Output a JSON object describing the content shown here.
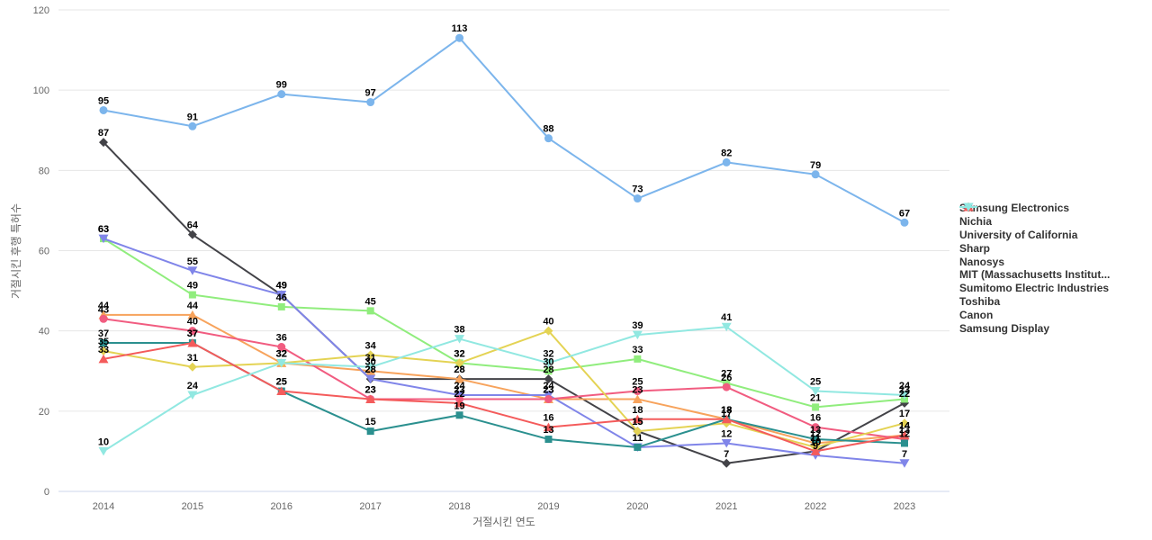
{
  "chart_data": {
    "type": "line",
    "title": "",
    "xlabel": "거절시킨 연도",
    "ylabel": "거절시킨 후행 특허수",
    "categories": [
      "2014",
      "2015",
      "2016",
      "2017",
      "2018",
      "2019",
      "2020",
      "2021",
      "2022",
      "2023"
    ],
    "ylim": [
      0,
      120
    ],
    "yticks": [
      0,
      20,
      40,
      60,
      80,
      100,
      120
    ],
    "grid": "horizontal-only",
    "legend_position": "right-middle",
    "data_labels": "bold black value above every point",
    "series": [
      {
        "name": "Samsung Electronics",
        "color": "#7cb5ec",
        "marker": "circle",
        "values": [
          95,
          91,
          99,
          97,
          113,
          88,
          73,
          82,
          79,
          67
        ]
      },
      {
        "name": "Nichia",
        "color": "#434348",
        "marker": "diamond",
        "values": [
          87,
          64,
          49,
          28,
          28,
          28,
          15,
          7,
          10,
          22
        ]
      },
      {
        "name": "University of California",
        "color": "#90ed7d",
        "marker": "square",
        "values": [
          63,
          49,
          46,
          45,
          32,
          30,
          33,
          27,
          21,
          23
        ]
      },
      {
        "name": "Sharp",
        "color": "#f7a35c",
        "marker": "triangle",
        "values": [
          44,
          44,
          32,
          30,
          28,
          23,
          23,
          18,
          12,
          14
        ]
      },
      {
        "name": "Nanosys",
        "color": "#8085e9",
        "marker": "triangle-down",
        "values": [
          63,
          55,
          49,
          28,
          24,
          24,
          11,
          12,
          9,
          7
        ]
      },
      {
        "name": "MIT (Massachusetts Institut...",
        "color": "#f15c80",
        "marker": "circle",
        "values": [
          43,
          40,
          36,
          23,
          23,
          23,
          25,
          26,
          16,
          13
        ]
      },
      {
        "name": "Sumitomo Electric Industries",
        "color": "#e4d354",
        "marker": "diamond",
        "values": [
          35,
          31,
          32,
          34,
          32,
          40,
          15,
          17,
          11,
          17
        ]
      },
      {
        "name": "Toshiba",
        "color": "#2b908f",
        "marker": "square",
        "values": [
          37,
          37,
          25,
          15,
          19,
          13,
          11,
          18,
          13,
          12
        ]
      },
      {
        "name": "Canon",
        "color": "#f45b5b",
        "marker": "triangle",
        "values": [
          33,
          37,
          25,
          23,
          22,
          16,
          18,
          18,
          10,
          14
        ]
      },
      {
        "name": "Samsung Display",
        "color": "#91e8e1",
        "marker": "triangle-down",
        "values": [
          10,
          24,
          32,
          31,
          38,
          32,
          39,
          41,
          25,
          24
        ]
      }
    ]
  },
  "colors": {
    "grid": "#e6e6e6",
    "axis_line": "#ccd6eb",
    "tick_text": "#666666",
    "legend_text": "#333333",
    "data_label": "#000000",
    "background": "#ffffff"
  }
}
